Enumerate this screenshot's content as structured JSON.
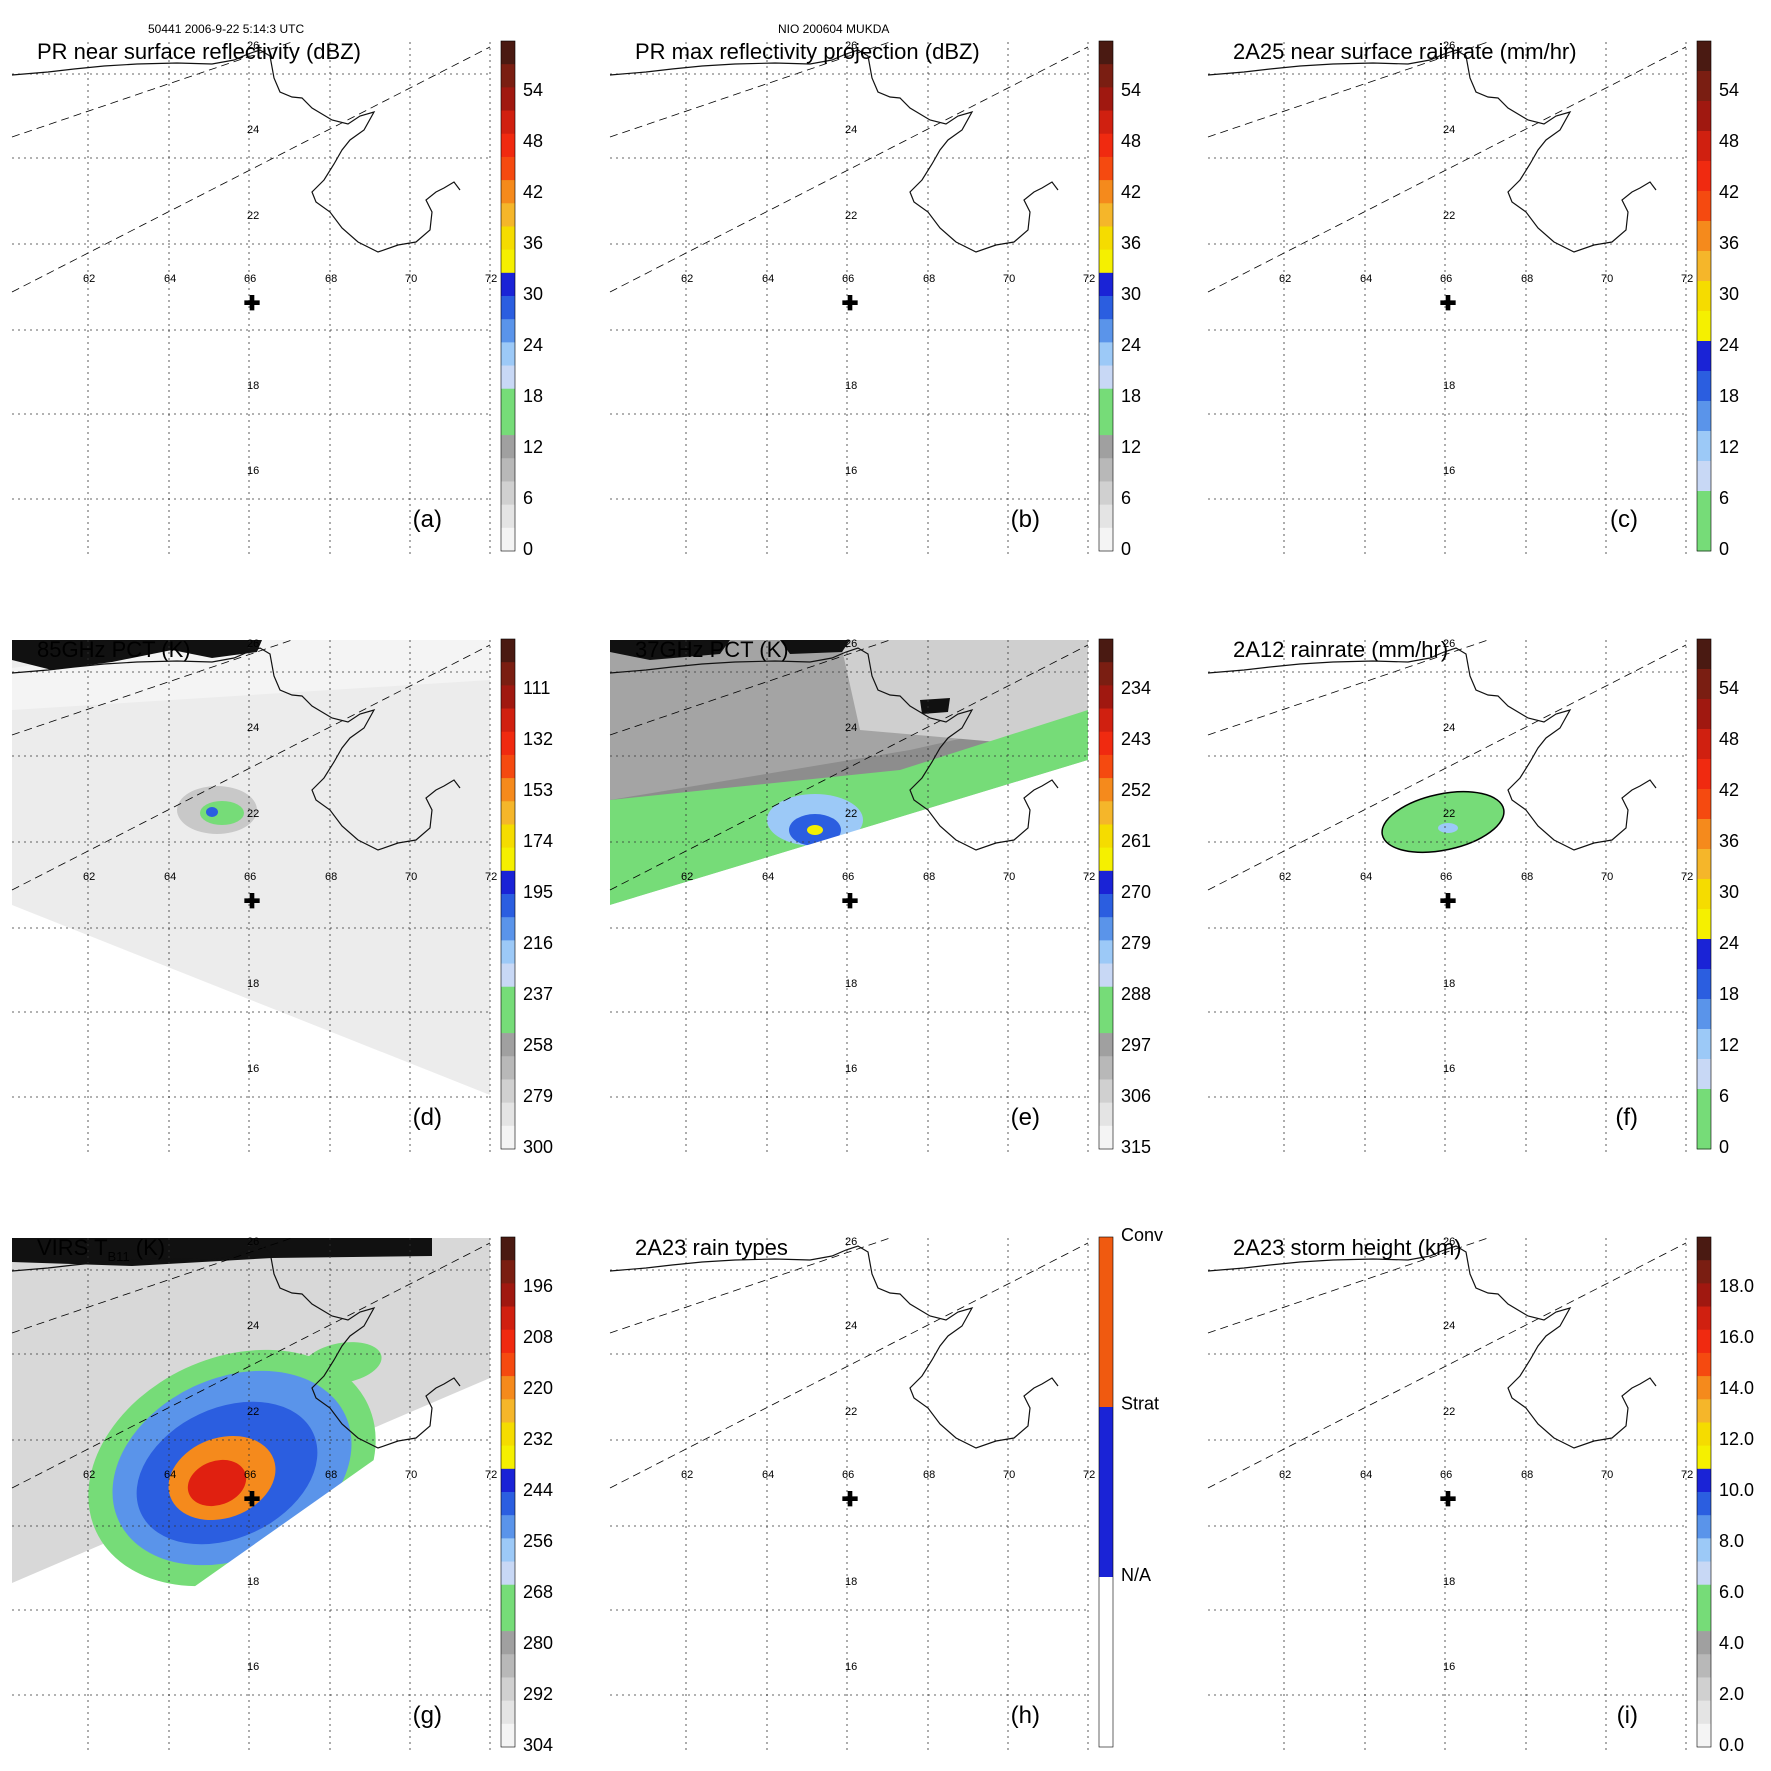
{
  "header": {
    "left": "50441 2006-9-22 5:14:3 UTC",
    "center": "NIO 200604 MUKDA"
  },
  "lon_labels": [
    "62",
    "64",
    "66",
    "68",
    "70",
    "72"
  ],
  "lat_labels": [
    "26",
    "24",
    "22",
    "18",
    "16"
  ],
  "cross_mark": "✚",
  "colors": {
    "coast": "#111111",
    "grid": "#333333",
    "green": "#76dc78",
    "lightblue": "#9cc9f7",
    "blue": "#2b5ee0",
    "darkblue": "#1a23d6",
    "yellow": "#f5f000",
    "orange": "#f58a1c",
    "red": "#e02010",
    "darkred": "#7a1e12",
    "ocean_gray": "#9c9c9c"
  },
  "colorbars": {
    "dbz": {
      "labels": [
        "54",
        "48",
        "42",
        "36",
        "30",
        "24",
        "18",
        "12",
        "6",
        "0"
      ],
      "colors": [
        "#4a1a12",
        "#7a1e12",
        "#a01810",
        "#d02010",
        "#f02a10",
        "#f54a10",
        "#f58a1c",
        "#f5b62a",
        "#f5dc00",
        "#f5f000",
        "#1a23d6",
        "#2b5ee0",
        "#5a94ea",
        "#9cc9f7",
        "#c8d8f5",
        "#76dc78",
        "#76dc78",
        "#a0a0a0",
        "#b8b8b8",
        "#d0d0d0",
        "#e4e4e4",
        "#f4f4f4"
      ]
    },
    "rate": {
      "labels": [
        "54",
        "48",
        "42",
        "36",
        "30",
        "24",
        "18",
        "12",
        "6",
        "0"
      ],
      "colors": [
        "#4a1a12",
        "#7a1e12",
        "#a01810",
        "#d02010",
        "#f02a10",
        "#f54a10",
        "#f58a1c",
        "#f5b62a",
        "#f5dc00",
        "#f5f000",
        "#1a23d6",
        "#2b5ee0",
        "#5a94ea",
        "#9cc9f7",
        "#c8d8f5",
        "#76dc78",
        "#76dc78"
      ]
    },
    "pct85": {
      "labels": [
        "111",
        "132",
        "153",
        "174",
        "195",
        "216",
        "237",
        "258",
        "279",
        "300"
      ],
      "colors": [
        "#4a1a12",
        "#7a1e12",
        "#a01810",
        "#d02010",
        "#f02a10",
        "#f54a10",
        "#f58a1c",
        "#f5b62a",
        "#f5dc00",
        "#f5f000",
        "#1a23d6",
        "#2b5ee0",
        "#5a94ea",
        "#9cc9f7",
        "#c8d8f5",
        "#76dc78",
        "#76dc78",
        "#a0a0a0",
        "#b8b8b8",
        "#d0d0d0",
        "#e4e4e4",
        "#f4f4f4"
      ]
    },
    "pct37": {
      "labels": [
        "234",
        "243",
        "252",
        "261",
        "270",
        "279",
        "288",
        "297",
        "306",
        "315"
      ],
      "colors": [
        "#4a1a12",
        "#7a1e12",
        "#a01810",
        "#d02010",
        "#f02a10",
        "#f54a10",
        "#f58a1c",
        "#f5b62a",
        "#f5dc00",
        "#f5f000",
        "#1a23d6",
        "#2b5ee0",
        "#5a94ea",
        "#9cc9f7",
        "#c8d8f5",
        "#76dc78",
        "#76dc78",
        "#a0a0a0",
        "#b8b8b8",
        "#d0d0d0",
        "#e4e4e4",
        "#f4f4f4"
      ]
    },
    "vir": {
      "labels": [
        "196",
        "208",
        "220",
        "232",
        "244",
        "256",
        "268",
        "280",
        "292",
        "304"
      ],
      "colors": [
        "#4a1a12",
        "#7a1e12",
        "#a01810",
        "#d02010",
        "#f02a10",
        "#f54a10",
        "#f58a1c",
        "#f5b62a",
        "#f5dc00",
        "#f5f000",
        "#1a23d6",
        "#2b5ee0",
        "#5a94ea",
        "#9cc9f7",
        "#c8d8f5",
        "#76dc78",
        "#76dc78",
        "#a0a0a0",
        "#b8b8b8",
        "#d0d0d0",
        "#e4e4e4",
        "#f4f4f4"
      ]
    },
    "types": {
      "labels": [
        "Conv",
        "Strat",
        "N/A"
      ],
      "colors": [
        "#f05a10",
        "#1a23d6",
        "#ffffff"
      ]
    },
    "height": {
      "labels": [
        "18.0",
        "16.0",
        "14.0",
        "12.0",
        "10.0",
        "8.0",
        "6.0",
        "4.0",
        "2.0",
        "0.0"
      ],
      "colors": [
        "#4a1a12",
        "#7a1e12",
        "#a01810",
        "#d02010",
        "#f02a10",
        "#f54a10",
        "#f58a1c",
        "#f5b62a",
        "#f5dc00",
        "#f5f000",
        "#1a23d6",
        "#2b5ee0",
        "#5a94ea",
        "#9cc9f7",
        "#c8d8f5",
        "#76dc78",
        "#76dc78",
        "#a0a0a0",
        "#b8b8b8",
        "#d0d0d0",
        "#e4e4e4",
        "#f4f4f4"
      ]
    }
  },
  "panels": [
    {
      "id": "a",
      "title": "PR near surface reflectivity (dBZ)",
      "letter": "(a)",
      "bar": "dbz",
      "fill": "none"
    },
    {
      "id": "b",
      "title": "PR max reflectivity projection (dBZ)",
      "letter": "(b)",
      "bar": "dbz",
      "fill": "none"
    },
    {
      "id": "c",
      "title": "2A25 near surface rainrate (mm/hr)",
      "letter": "(c)",
      "bar": "rate",
      "fill": "none"
    },
    {
      "id": "d",
      "title": "85GHz PCT (K)",
      "letter": "(d)",
      "bar": "pct85",
      "fill": "pct85"
    },
    {
      "id": "e",
      "title": "37GHz PCT (K)",
      "letter": "(e)",
      "bar": "pct37",
      "fill": "pct37"
    },
    {
      "id": "f",
      "title": "2A12 rainrate (mm/hr)",
      "letter": "(f)",
      "bar": "rate",
      "fill": "rain12"
    },
    {
      "id": "g",
      "title": "VIRS T",
      "title_sub": "B11",
      "title_tail": " (K)",
      "letter": "(g)",
      "bar": "vir",
      "fill": "vir"
    },
    {
      "id": "h",
      "title": "2A23 rain types",
      "letter": "(h)",
      "bar": "types",
      "fill": "none"
    },
    {
      "id": "i",
      "title": "2A23 storm height (km)",
      "letter": "(i)",
      "bar": "height",
      "fill": "none"
    }
  ]
}
